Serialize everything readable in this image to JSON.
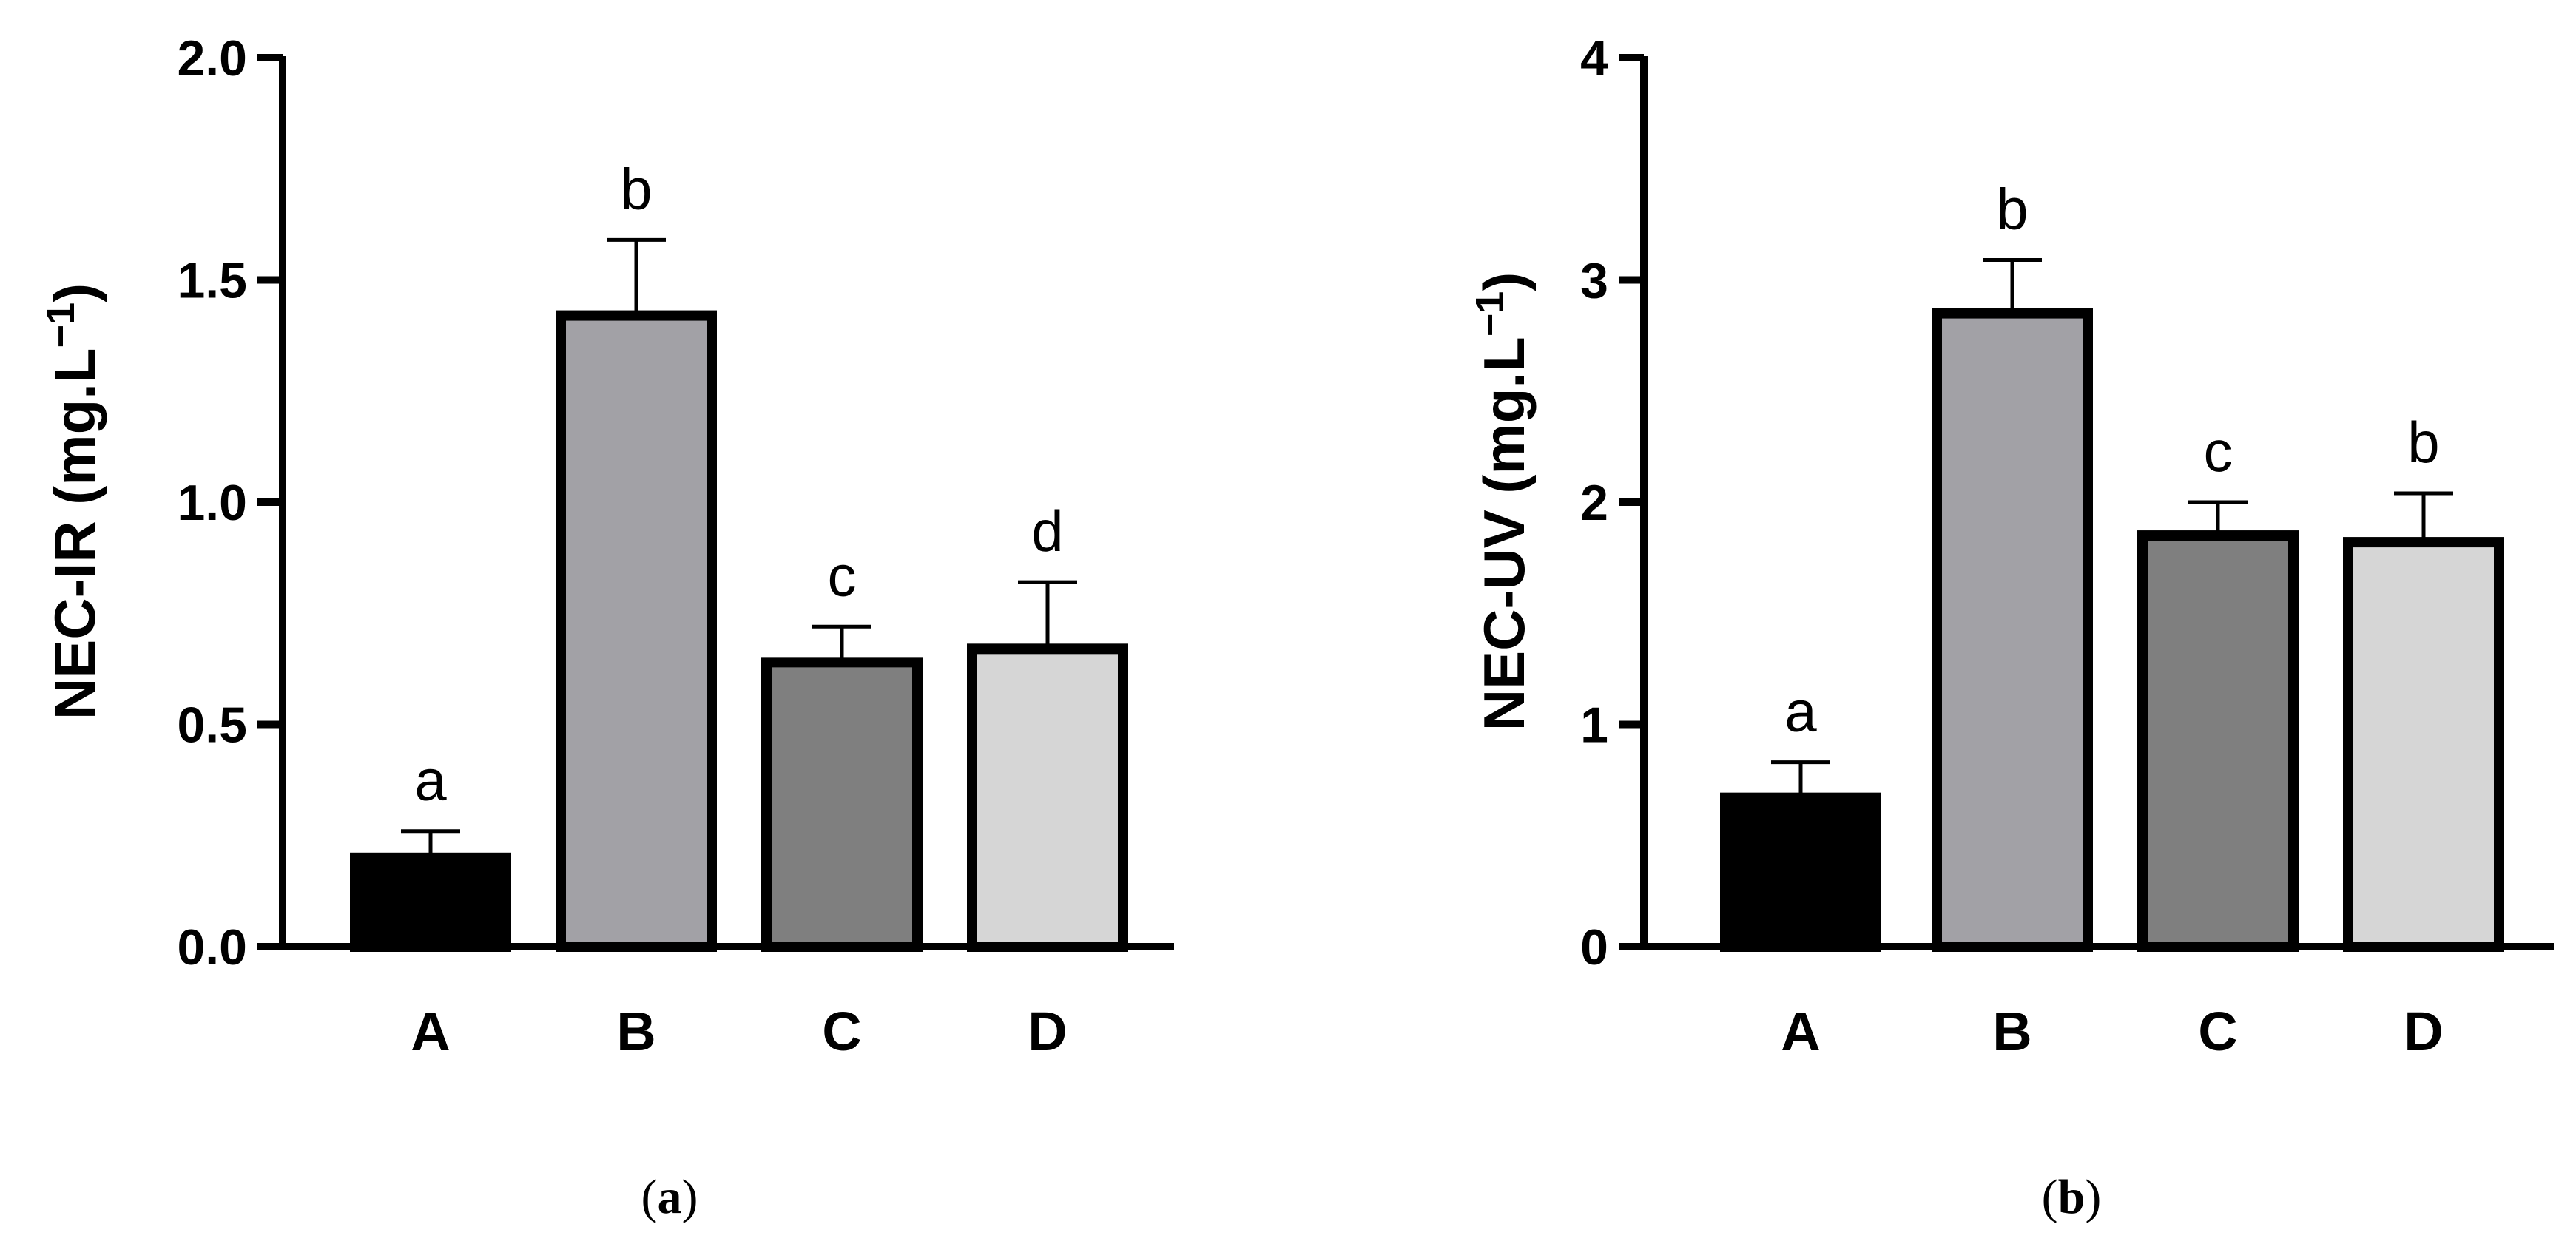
{
  "chart_data": [
    {
      "type": "bar",
      "panel_label": "a",
      "ylabel": "NEC-IR (mg.L",
      "ylabel_sup": "−1",
      "ylabel_close": ")",
      "ylim": [
        0,
        2.0
      ],
      "yticks": [
        "0.0",
        "0.5",
        "1.0",
        "1.5",
        "2.0"
      ],
      "categories": [
        "A",
        "B",
        "C",
        "D"
      ],
      "values": [
        0.2,
        1.42,
        0.64,
        0.67
      ],
      "errors": [
        0.06,
        0.17,
        0.08,
        0.15
      ],
      "letters": [
        "a",
        "b",
        "c",
        "d"
      ],
      "colors": [
        "#000000",
        "#a2a1a6",
        "#7f7f7f",
        "#d6d6d6"
      ]
    },
    {
      "type": "bar",
      "panel_label": "b",
      "ylabel": "NEC-UV (mg.L",
      "ylabel_sup": "−1",
      "ylabel_close": ")",
      "ylim": [
        0,
        4
      ],
      "yticks": [
        "0",
        "1",
        "2",
        "3",
        "4"
      ],
      "categories": [
        "A",
        "B",
        "C",
        "D"
      ],
      "values": [
        0.67,
        2.85,
        1.85,
        1.82
      ],
      "errors": [
        0.16,
        0.24,
        0.15,
        0.22
      ],
      "letters": [
        "a",
        "b",
        "c",
        "b"
      ],
      "colors": [
        "#000000",
        "#a2a1a6",
        "#7f7f7f",
        "#d6d6d6"
      ]
    }
  ]
}
